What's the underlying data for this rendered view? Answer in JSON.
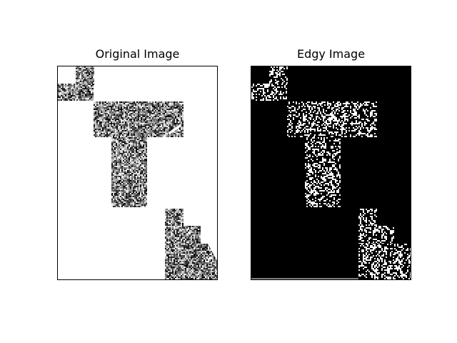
{
  "chart_data": [
    {
      "type": "heatmap",
      "title": "Original Image",
      "xlabel": "",
      "ylabel": "",
      "background_color": "#ffffff",
      "texture": "grayscale noise",
      "axes_ticks": false,
      "grid": false
    },
    {
      "type": "heatmap",
      "title": "Edgy Image",
      "xlabel": "",
      "ylabel": "",
      "background_color": "#000000",
      "texture": "sparse white noise",
      "axes_ticks": false,
      "grid": false
    }
  ]
}
